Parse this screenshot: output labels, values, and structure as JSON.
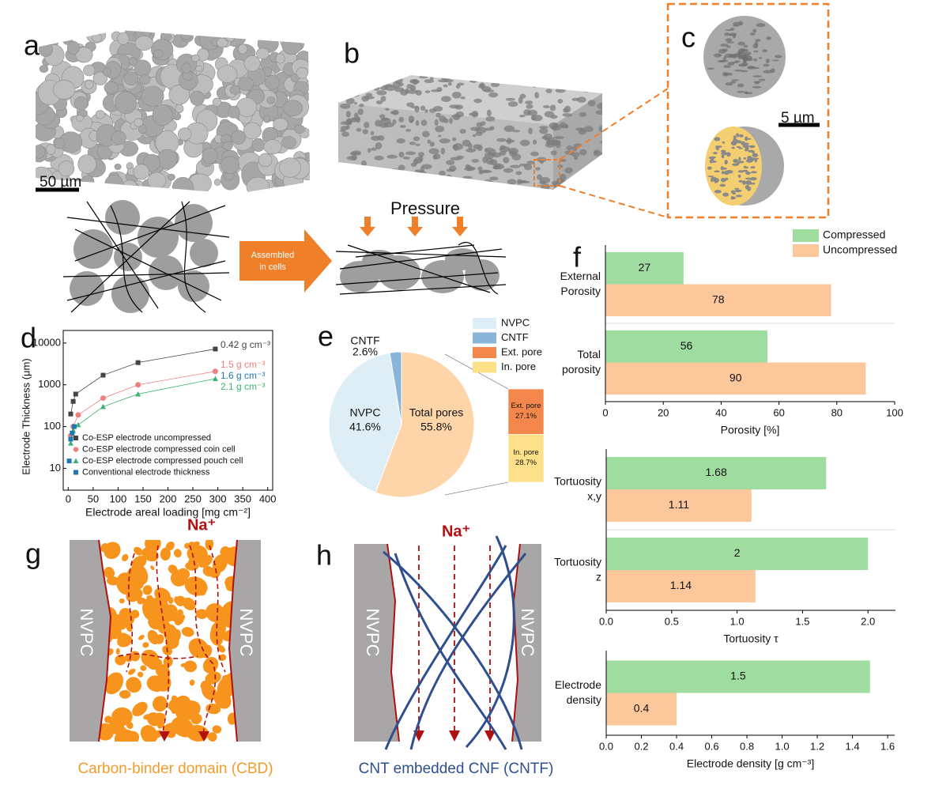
{
  "panel_labels": [
    "a",
    "b",
    "c",
    "d",
    "e",
    "f",
    "g",
    "h"
  ],
  "illustration": {
    "scale_a": "50 µm",
    "scale_c": "5 µm",
    "pressure": "Pressure",
    "assembled": [
      "Assembled",
      "in cells"
    ],
    "na_labels": [
      "Na⁺",
      "Na⁺"
    ],
    "wall_labels": [
      "NVPC",
      "NVPC",
      "NVPC",
      "NVPC"
    ],
    "captions": [
      "Carbon-binder domain (CBD)",
      "CNT embedded CNF (CNTF)"
    ]
  },
  "chart_data": [
    {
      "type": "scatter",
      "xlabel": "Electrode areal loading [mg cm⁻²]",
      "ylabel": "Electrode Thickness (μm)",
      "log_y": true,
      "xlim": [
        -10,
        410
      ],
      "ylim": [
        3,
        20000
      ],
      "xticks": [
        0,
        50,
        100,
        150,
        200,
        250,
        300,
        350,
        400
      ],
      "yticks": [
        10,
        100,
        1000,
        10000
      ],
      "series": [
        {
          "name": "Co-ESP electrode uncompressed",
          "color": "#444444",
          "marker": "square",
          "x": [
            5,
            10,
            15,
            70,
            140,
            295
          ],
          "values": [
            200,
            400,
            600,
            1700,
            3400,
            7200
          ]
        },
        {
          "name": "Co-ESP electrode compressed coin cell",
          "color": "#f08080",
          "marker": "circle",
          "x": [
            5,
            10,
            20,
            70,
            140,
            295
          ],
          "values": [
            60,
            100,
            190,
            480,
            1000,
            2100
          ]
        },
        {
          "name": "Co-ESP electrode compressed pouch cell",
          "color": "#3cb371",
          "marker": "triangle",
          "x": [
            5,
            10,
            20,
            70,
            140,
            295
          ],
          "values": [
            40,
            80,
            110,
            300,
            600,
            1400
          ]
        },
        {
          "name": "Conventional electrode thickness",
          "color": "#1f77b4",
          "marker": "square",
          "x": [
            2,
            5,
            8,
            12
          ],
          "values": [
            15,
            50,
            70,
            100
          ]
        }
      ],
      "annotations": [
        {
          "text": "0.42 g cm⁻³",
          "color": "#444444"
        },
        {
          "text": "1.5 g cm⁻³",
          "color": "#f08080"
        },
        {
          "text": "1.6 g cm⁻³",
          "color": "#1f77b4"
        },
        {
          "text": "2.1 g cm⁻³",
          "color": "#3cb371"
        }
      ]
    },
    {
      "type": "pie",
      "categories": [
        "NVPC",
        "CNTF",
        "Total pores"
      ],
      "values": [
        41.6,
        2.6,
        55.8
      ],
      "value_labels": [
        "41.6%",
        "2.6%",
        "55.8%"
      ],
      "colors": [
        "#ddeef6",
        "#8ab4d8",
        "#fdd5a8"
      ],
      "breakdown": {
        "categories": [
          "Ext. pore",
          "In. pore"
        ],
        "values": [
          27.1,
          28.7
        ],
        "value_labels": [
          "27.1%",
          "28.7%"
        ],
        "colors": [
          "#f4874b",
          "#fde08a"
        ]
      }
    },
    {
      "type": "hbar",
      "categories": [
        "External Porosity",
        "Total porosity"
      ],
      "series": [
        {
          "name": "Compressed",
          "color": "#9fdc9f",
          "values": [
            27,
            56
          ]
        },
        {
          "name": "Uncompressed",
          "color": "#fcc79a",
          "values": [
            78,
            90
          ]
        }
      ],
      "xlim": [
        0,
        100
      ],
      "xticks": [
        0,
        20,
        40,
        60,
        80,
        100
      ],
      "xlabel": "Porosity [%]"
    },
    {
      "type": "hbar",
      "categories": [
        "Tortuosity x,y",
        "Tortuosity z"
      ],
      "series": [
        {
          "color": "#9fdc9f",
          "values": [
            1.68,
            2
          ]
        },
        {
          "color": "#fcc79a",
          "values": [
            1.11,
            1.14
          ]
        }
      ],
      "xlim": [
        0,
        2.21
      ],
      "xticks": [
        {
          "value": 0,
          "label": "0.0"
        },
        0.5,
        {
          "value": 1,
          "label": "1.0"
        },
        1.5,
        {
          "value": 2,
          "label": "2.0"
        }
      ],
      "xlabel": "Tortuosity τ"
    },
    {
      "type": "hbar",
      "categories": [
        "Electrode density"
      ],
      "series": [
        {
          "color": "#9fdc9f",
          "values": [
            1.5
          ]
        },
        {
          "color": "#fcc79a",
          "values": [
            0.4
          ]
        }
      ],
      "xlim": [
        0,
        1.64
      ],
      "xticks": [
        {
          "value": 0,
          "label": "0.0"
        },
        0.2,
        0.4,
        0.6,
        0.8,
        {
          "value": 1,
          "label": "1.0"
        },
        1.2,
        1.4,
        1.6
      ],
      "xlabel": "Electrode density [g cm⁻³]"
    }
  ]
}
